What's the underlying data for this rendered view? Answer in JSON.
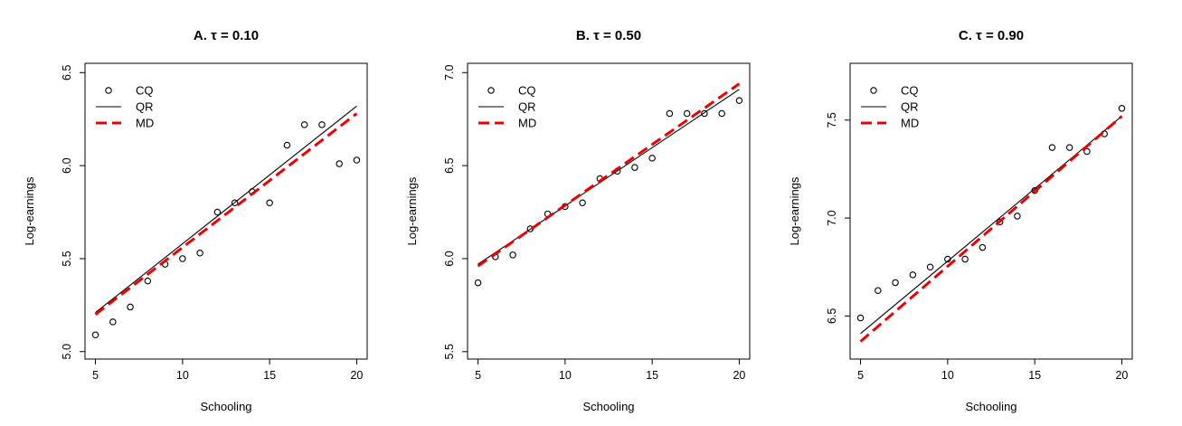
{
  "chart_data": [
    {
      "type": "scatter",
      "title": "A. τ = 0.10",
      "xlabel": "Schooling",
      "ylabel": "Log-earnings",
      "xlim": [
        4.4,
        20.6
      ],
      "ylim": [
        4.96,
        6.55
      ],
      "xticks": [
        "5",
        "10",
        "15",
        "20"
      ],
      "yticks": [
        "5.0",
        "5.5",
        "6.0",
        "6.5"
      ],
      "legend_position": "top-left",
      "series": [
        {
          "name": "CQ",
          "style": "points",
          "color": "#000000",
          "x": [
            5,
            6,
            7,
            8,
            9,
            10,
            11,
            12,
            13,
            14,
            15,
            16,
            17,
            18,
            19,
            20
          ],
          "y": [
            5.09,
            5.16,
            5.24,
            5.38,
            5.47,
            5.5,
            5.53,
            5.75,
            5.8,
            5.86,
            5.8,
            6.11,
            6.22,
            6.22,
            6.01,
            6.03
          ]
        },
        {
          "name": "QR",
          "style": "line",
          "color": "#000000",
          "x": [
            5,
            20
          ],
          "y": [
            5.21,
            6.32
          ]
        },
        {
          "name": "MD",
          "style": "dashed",
          "color": "#ee0000",
          "x": [
            5,
            20
          ],
          "y": [
            5.2,
            6.28
          ]
        }
      ]
    },
    {
      "type": "scatter",
      "title": "B. τ = 0.50",
      "xlabel": "Schooling",
      "ylabel": "Log-earnings",
      "xlim": [
        4.4,
        20.6
      ],
      "ylim": [
        5.46,
        7.05
      ],
      "xticks": [
        "5",
        "10",
        "15",
        "20"
      ],
      "yticks": [
        "5.5",
        "6.0",
        "6.5",
        "7.0"
      ],
      "legend_position": "top-left",
      "series": [
        {
          "name": "CQ",
          "style": "points",
          "color": "#000000",
          "x": [
            5,
            6,
            7,
            8,
            9,
            10,
            11,
            12,
            13,
            14,
            15,
            16,
            17,
            18,
            19,
            20
          ],
          "y": [
            5.87,
            6.01,
            6.02,
            6.16,
            6.24,
            6.28,
            6.3,
            6.43,
            6.47,
            6.49,
            6.54,
            6.78,
            6.78,
            6.78,
            6.78,
            6.85
          ]
        },
        {
          "name": "QR",
          "style": "line",
          "color": "#000000",
          "x": [
            5,
            20
          ],
          "y": [
            5.97,
            6.91
          ]
        },
        {
          "name": "MD",
          "style": "dashed",
          "color": "#ee0000",
          "x": [
            5,
            20
          ],
          "y": [
            5.96,
            6.94
          ]
        }
      ]
    },
    {
      "type": "scatter",
      "title": "C. τ = 0.90",
      "xlabel": "Schooling",
      "ylabel": "Log-earnings",
      "xlim": [
        4.4,
        20.6
      ],
      "ylim": [
        6.28,
        7.79
      ],
      "xticks": [
        "5",
        "10",
        "15",
        "20"
      ],
      "yticks": [
        "6.5",
        "7.0",
        "7.5"
      ],
      "legend_position": "top-left",
      "series": [
        {
          "name": "CQ",
          "style": "points",
          "color": "#000000",
          "x": [
            5,
            6,
            7,
            8,
            9,
            10,
            11,
            12,
            13,
            14,
            15,
            16,
            17,
            18,
            19,
            20
          ],
          "y": [
            6.49,
            6.63,
            6.67,
            6.71,
            6.75,
            6.79,
            6.79,
            6.85,
            6.98,
            7.01,
            7.14,
            7.36,
            7.36,
            7.34,
            7.43,
            7.56
          ]
        },
        {
          "name": "QR",
          "style": "line",
          "color": "#000000",
          "x": [
            5,
            20
          ],
          "y": [
            6.41,
            7.52
          ]
        },
        {
          "name": "MD",
          "style": "dashed",
          "color": "#ee0000",
          "x": [
            5,
            20
          ],
          "y": [
            6.37,
            7.52
          ]
        }
      ]
    }
  ]
}
